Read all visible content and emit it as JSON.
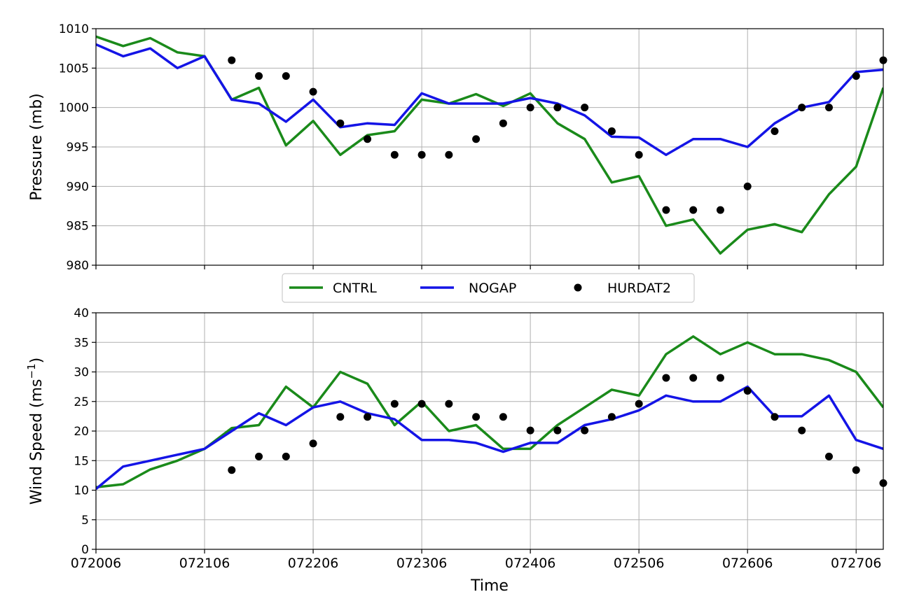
{
  "colors": {
    "CNTRL": "#1a8a1a",
    "NOGAP": "#1414e6",
    "HURDAT2": "#000000",
    "grid": "#b0b0b0"
  },
  "chart_data": [
    {
      "type": "line",
      "ylabel": "Pressure (mb)",
      "xlabel": "",
      "ylim": [
        980,
        1010
      ],
      "yticks": [
        "980",
        "985",
        "990",
        "995",
        "1000",
        "1005",
        "1010"
      ],
      "x_tick_labels": [],
      "grid": true,
      "series": [
        {
          "name": "CNTRL",
          "kind": "line",
          "x": [
            0,
            0.25,
            0.5,
            0.75,
            1,
            1.25,
            1.5,
            1.75,
            2,
            2.25,
            2.5,
            2.75,
            3,
            3.25,
            3.5,
            3.75,
            4,
            4.25,
            4.5,
            4.75,
            5,
            5.25,
            5.5,
            5.75,
            6,
            6.25,
            6.5,
            6.75,
            7,
            7.25
          ],
          "y": [
            1009,
            1007.8,
            1008.8,
            1007,
            1006.5,
            1001,
            1002.5,
            995.2,
            998.3,
            994,
            996.5,
            997,
            1001,
            1000.5,
            1001.7,
            1000.2,
            1001.8,
            998,
            996,
            990.5,
            991.3,
            985,
            985.8,
            981.5,
            984.5,
            985.2,
            984.2,
            989,
            992.5,
            1002.5
          ]
        },
        {
          "name": "NOGAP",
          "kind": "line",
          "x": [
            0,
            0.25,
            0.5,
            0.75,
            1,
            1.25,
            1.5,
            1.75,
            2,
            2.25,
            2.5,
            2.75,
            3,
            3.25,
            3.5,
            3.75,
            4,
            4.25,
            4.5,
            4.75,
            5,
            5.25,
            5.5,
            5.75,
            6,
            6.25,
            6.5,
            6.75,
            7,
            7.25
          ],
          "y": [
            1008,
            1006.5,
            1007.5,
            1005,
            1006.5,
            1001,
            1000.5,
            998.2,
            1001,
            997.5,
            998,
            997.8,
            1001.8,
            1000.5,
            1000.5,
            1000.5,
            1001.2,
            1000.5,
            999,
            996.3,
            996.2,
            994,
            996,
            996,
            995,
            998,
            1000,
            1000.7,
            1004.5,
            1004.8
          ]
        },
        {
          "name": "HURDAT2",
          "kind": "points",
          "x": [
            1.25,
            1.5,
            1.75,
            2,
            2.25,
            2.5,
            2.75,
            3,
            3.25,
            3.5,
            3.75,
            4,
            4.25,
            4.5,
            4.75,
            5,
            5.25,
            5.5,
            5.75,
            6,
            6.25,
            6.5,
            6.75,
            7,
            7.25
          ],
          "y": [
            1006,
            1004,
            1004,
            1002,
            998,
            996,
            994,
            994,
            994,
            996,
            998,
            1000,
            1000,
            1000,
            997,
            994,
            987,
            987,
            987,
            990,
            997,
            1000,
            1000,
            1004,
            1006
          ]
        }
      ]
    },
    {
      "type": "line",
      "ylabel": "Wind Speed (ms",
      "ylabel_sup": "−1",
      "ylabel_end": ")",
      "xlabel": "Time",
      "ylim": [
        0,
        40
      ],
      "yticks": [
        "0",
        "5",
        "10",
        "15",
        "20",
        "25",
        "30",
        "35",
        "40"
      ],
      "x_tick_labels": [
        "072006",
        "072106",
        "072206",
        "072306",
        "072406",
        "072506",
        "072606",
        "072706"
      ],
      "grid": true,
      "series": [
        {
          "name": "CNTRL",
          "kind": "line",
          "x": [
            0,
            0.25,
            0.5,
            0.75,
            1,
            1.25,
            1.5,
            1.75,
            2,
            2.25,
            2.5,
            2.75,
            3,
            3.25,
            3.5,
            3.75,
            4,
            4.25,
            4.5,
            4.75,
            5,
            5.25,
            5.5,
            5.75,
            6,
            6.25,
            6.5,
            6.75,
            7,
            7.25
          ],
          "y": [
            10.5,
            11,
            13.5,
            15,
            17,
            20.5,
            21,
            27.5,
            24,
            30,
            28,
            21,
            25,
            20,
            21,
            17,
            17,
            21,
            24,
            27,
            26,
            33,
            36,
            33,
            35,
            33,
            33,
            32,
            30,
            24
          ]
        },
        {
          "name": "NOGAP",
          "kind": "line",
          "x": [
            0,
            0.25,
            0.5,
            0.75,
            1,
            1.25,
            1.5,
            1.75,
            2,
            2.25,
            2.5,
            2.75,
            3,
            3.25,
            3.5,
            3.75,
            4,
            4.25,
            4.5,
            4.75,
            5,
            5.25,
            5.5,
            5.75,
            6,
            6.25,
            6.5,
            6.75,
            7,
            7.25
          ],
          "y": [
            10.2,
            14,
            15,
            16,
            17,
            20,
            23,
            21,
            24,
            25,
            23,
            22,
            18.5,
            18.5,
            18,
            16.5,
            18,
            18,
            21,
            22,
            23.5,
            26,
            25,
            25,
            27.5,
            22.5,
            22.5,
            26,
            18.5,
            17
          ]
        },
        {
          "name": "HURDAT2",
          "kind": "points",
          "x": [
            1.25,
            1.5,
            1.75,
            2,
            2.25,
            2.5,
            2.75,
            3,
            3.25,
            3.5,
            3.75,
            4,
            4.25,
            4.5,
            4.75,
            5,
            5.25,
            5.5,
            5.75,
            6,
            6.25,
            6.5,
            6.75,
            7,
            7.25
          ],
          "y": [
            13.4,
            15.7,
            15.7,
            17.9,
            22.4,
            22.4,
            24.6,
            24.6,
            24.6,
            22.4,
            22.4,
            20.1,
            20.1,
            20.1,
            22.4,
            24.6,
            29,
            29,
            29,
            26.8,
            22.4,
            20.1,
            15.7,
            13.4,
            11.2
          ]
        }
      ]
    }
  ],
  "legend": {
    "placement": "between-panels",
    "entries": [
      "CNTRL",
      "NOGAP",
      "HURDAT2"
    ]
  }
}
